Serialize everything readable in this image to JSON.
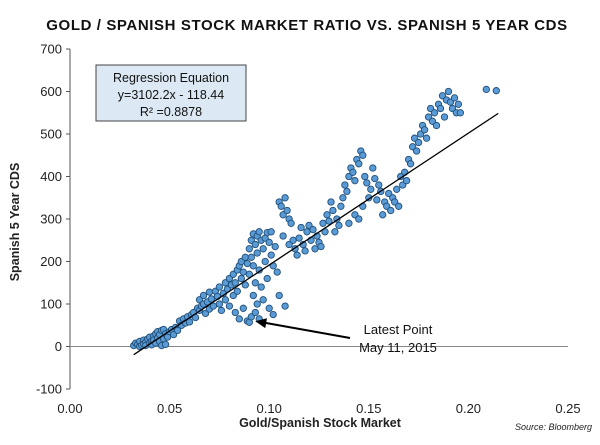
{
  "chart_data": {
    "type": "scatter",
    "title": "GOLD / SPANISH STOCK MARKET RATIO VS. SPANISH 5 YEAR CDS",
    "xlabel": "Gold/Spanish Stock Market",
    "ylabel": "Spanish 5 Year CDS",
    "xlim": [
      0.0,
      0.25
    ],
    "ylim": [
      -100,
      700
    ],
    "x_ticks": [
      "0.00",
      "0.05",
      "0.10",
      "0.15",
      "0.20",
      "0.25"
    ],
    "y_ticks": [
      "-100",
      "0",
      "100",
      "200",
      "300",
      "400",
      "500",
      "600",
      "700"
    ],
    "grid": false,
    "point_color": "#5b9bd5",
    "point_edge_color": "#1f4e79",
    "regression": {
      "lines": [
        "Regression Equation",
        "y=3102.2x - 118.44",
        "R² =0.8878"
      ],
      "slope": 3102.2,
      "intercept": -118.44,
      "x_range": [
        0.032,
        0.215
      ],
      "box_color": "#dce9f5"
    },
    "annotation": {
      "lines": [
        "Latest Point",
        "May 11, 2015"
      ],
      "point": [
        0.09,
        57
      ]
    },
    "source": "Source: Bloomberg",
    "points": [
      [
        0.032,
        2
      ],
      [
        0.033,
        8
      ],
      [
        0.034,
        5
      ],
      [
        0.035,
        12
      ],
      [
        0.035,
        0
      ],
      [
        0.036,
        3
      ],
      [
        0.037,
        15
      ],
      [
        0.037,
        6
      ],
      [
        0.038,
        10
      ],
      [
        0.038,
        2
      ],
      [
        0.039,
        18
      ],
      [
        0.04,
        8
      ],
      [
        0.04,
        22
      ],
      [
        0.041,
        12
      ],
      [
        0.041,
        4
      ],
      [
        0.042,
        25
      ],
      [
        0.042,
        15
      ],
      [
        0.043,
        30
      ],
      [
        0.043,
        8
      ],
      [
        0.044,
        20
      ],
      [
        0.044,
        35
      ],
      [
        0.045,
        12
      ],
      [
        0.045,
        28
      ],
      [
        0.046,
        38
      ],
      [
        0.046,
        2
      ],
      [
        0.047,
        18
      ],
      [
        0.047,
        40
      ],
      [
        0.048,
        30
      ],
      [
        0.048,
        5
      ],
      [
        0.049,
        22
      ],
      [
        0.05,
        35
      ],
      [
        0.051,
        40
      ],
      [
        0.052,
        28
      ],
      [
        0.053,
        45
      ],
      [
        0.054,
        38
      ],
      [
        0.055,
        60
      ],
      [
        0.056,
        50
      ],
      [
        0.057,
        65
      ],
      [
        0.058,
        55
      ],
      [
        0.059,
        70
      ],
      [
        0.06,
        58
      ],
      [
        0.061,
        75
      ],
      [
        0.062,
        80
      ],
      [
        0.063,
        68
      ],
      [
        0.064,
        90
      ],
      [
        0.065,
        85
      ],
      [
        0.065,
        110
      ],
      [
        0.066,
        95
      ],
      [
        0.067,
        120
      ],
      [
        0.067,
        100
      ],
      [
        0.068,
        78
      ],
      [
        0.069,
        105
      ],
      [
        0.07,
        128
      ],
      [
        0.07,
        88
      ],
      [
        0.071,
        112
      ],
      [
        0.072,
        95
      ],
      [
        0.073,
        130
      ],
      [
        0.074,
        118
      ],
      [
        0.075,
        140
      ],
      [
        0.075,
        100
      ],
      [
        0.076,
        85
      ],
      [
        0.077,
        125
      ],
      [
        0.078,
        150
      ],
      [
        0.078,
        110
      ],
      [
        0.079,
        135
      ],
      [
        0.08,
        160
      ],
      [
        0.08,
        95
      ],
      [
        0.081,
        145
      ],
      [
        0.082,
        120
      ],
      [
        0.082,
        170
      ],
      [
        0.083,
        150
      ],
      [
        0.083,
        80
      ],
      [
        0.084,
        180
      ],
      [
        0.084,
        130
      ],
      [
        0.085,
        190
      ],
      [
        0.085,
        65
      ],
      [
        0.086,
        160
      ],
      [
        0.086,
        200
      ],
      [
        0.087,
        175
      ],
      [
        0.087,
        90
      ],
      [
        0.088,
        210
      ],
      [
        0.088,
        145
      ],
      [
        0.089,
        195
      ],
      [
        0.089,
        60
      ],
      [
        0.09,
        230
      ],
      [
        0.09,
        170
      ],
      [
        0.09,
        57
      ],
      [
        0.091,
        250
      ],
      [
        0.091,
        210
      ],
      [
        0.091,
        70
      ],
      [
        0.092,
        265
      ],
      [
        0.092,
        190
      ],
      [
        0.092,
        120
      ],
      [
        0.093,
        240
      ],
      [
        0.093,
        150
      ],
      [
        0.093,
        80
      ],
      [
        0.094,
        260
      ],
      [
        0.094,
        220
      ],
      [
        0.094,
        100
      ],
      [
        0.095,
        270
      ],
      [
        0.095,
        180
      ],
      [
        0.095,
        65
      ],
      [
        0.096,
        250
      ],
      [
        0.096,
        140
      ],
      [
        0.097,
        230
      ],
      [
        0.097,
        110
      ],
      [
        0.098,
        255
      ],
      [
        0.098,
        200
      ],
      [
        0.099,
        268
      ],
      [
        0.099,
        160
      ],
      [
        0.1,
        245
      ],
      [
        0.1,
        90
      ],
      [
        0.101,
        270
      ],
      [
        0.101,
        215
      ],
      [
        0.102,
        190
      ],
      [
        0.102,
        75
      ],
      [
        0.103,
        235
      ],
      [
        0.104,
        175
      ],
      [
        0.105,
        340
      ],
      [
        0.105,
        120
      ],
      [
        0.106,
        330
      ],
      [
        0.107,
        310
      ],
      [
        0.107,
        260
      ],
      [
        0.108,
        350
      ],
      [
        0.108,
        95
      ],
      [
        0.109,
        320
      ],
      [
        0.11,
        300
      ],
      [
        0.11,
        240
      ],
      [
        0.111,
        290
      ],
      [
        0.112,
        250
      ],
      [
        0.113,
        230
      ],
      [
        0.114,
        215
      ],
      [
        0.115,
        255
      ],
      [
        0.116,
        280
      ],
      [
        0.117,
        240
      ],
      [
        0.118,
        225
      ],
      [
        0.119,
        270
      ],
      [
        0.12,
        285
      ],
      [
        0.121,
        250
      ],
      [
        0.122,
        275
      ],
      [
        0.123,
        230
      ],
      [
        0.124,
        260
      ],
      [
        0.125,
        245
      ],
      [
        0.126,
        235
      ],
      [
        0.127,
        290
      ],
      [
        0.128,
        270
      ],
      [
        0.129,
        310
      ],
      [
        0.13,
        295
      ],
      [
        0.131,
        340
      ],
      [
        0.132,
        320
      ],
      [
        0.133,
        270
      ],
      [
        0.134,
        300
      ],
      [
        0.135,
        285
      ],
      [
        0.136,
        330
      ],
      [
        0.137,
        350
      ],
      [
        0.138,
        380
      ],
      [
        0.139,
        365
      ],
      [
        0.14,
        400
      ],
      [
        0.14,
        290
      ],
      [
        0.141,
        420
      ],
      [
        0.142,
        410
      ],
      [
        0.143,
        390
      ],
      [
        0.143,
        310
      ],
      [
        0.144,
        440
      ],
      [
        0.145,
        430
      ],
      [
        0.145,
        300
      ],
      [
        0.146,
        460
      ],
      [
        0.147,
        450
      ],
      [
        0.147,
        330
      ],
      [
        0.148,
        400
      ],
      [
        0.149,
        385
      ],
      [
        0.15,
        350
      ],
      [
        0.151,
        370
      ],
      [
        0.152,
        420
      ],
      [
        0.153,
        395
      ],
      [
        0.154,
        345
      ],
      [
        0.155,
        380
      ],
      [
        0.156,
        365
      ],
      [
        0.157,
        310
      ],
      [
        0.158,
        340
      ],
      [
        0.159,
        330
      ],
      [
        0.16,
        360
      ],
      [
        0.161,
        320
      ],
      [
        0.162,
        350
      ],
      [
        0.163,
        340
      ],
      [
        0.164,
        370
      ],
      [
        0.165,
        330
      ],
      [
        0.166,
        400
      ],
      [
        0.167,
        380
      ],
      [
        0.168,
        410
      ],
      [
        0.169,
        390
      ],
      [
        0.17,
        440
      ],
      [
        0.171,
        430
      ],
      [
        0.172,
        470
      ],
      [
        0.173,
        490
      ],
      [
        0.174,
        460
      ],
      [
        0.175,
        480
      ],
      [
        0.176,
        500
      ],
      [
        0.177,
        520
      ],
      [
        0.178,
        510
      ],
      [
        0.179,
        490
      ],
      [
        0.18,
        540
      ],
      [
        0.181,
        560
      ],
      [
        0.182,
        530
      ],
      [
        0.183,
        550
      ],
      [
        0.184,
        520
      ],
      [
        0.185,
        570
      ],
      [
        0.186,
        560
      ],
      [
        0.187,
        590
      ],
      [
        0.188,
        540
      ],
      [
        0.189,
        580
      ],
      [
        0.19,
        600
      ],
      [
        0.191,
        575
      ],
      [
        0.192,
        560
      ],
      [
        0.193,
        585
      ],
      [
        0.194,
        550
      ],
      [
        0.195,
        570
      ],
      [
        0.196,
        550
      ],
      [
        0.209,
        605
      ],
      [
        0.214,
        602
      ]
    ]
  }
}
